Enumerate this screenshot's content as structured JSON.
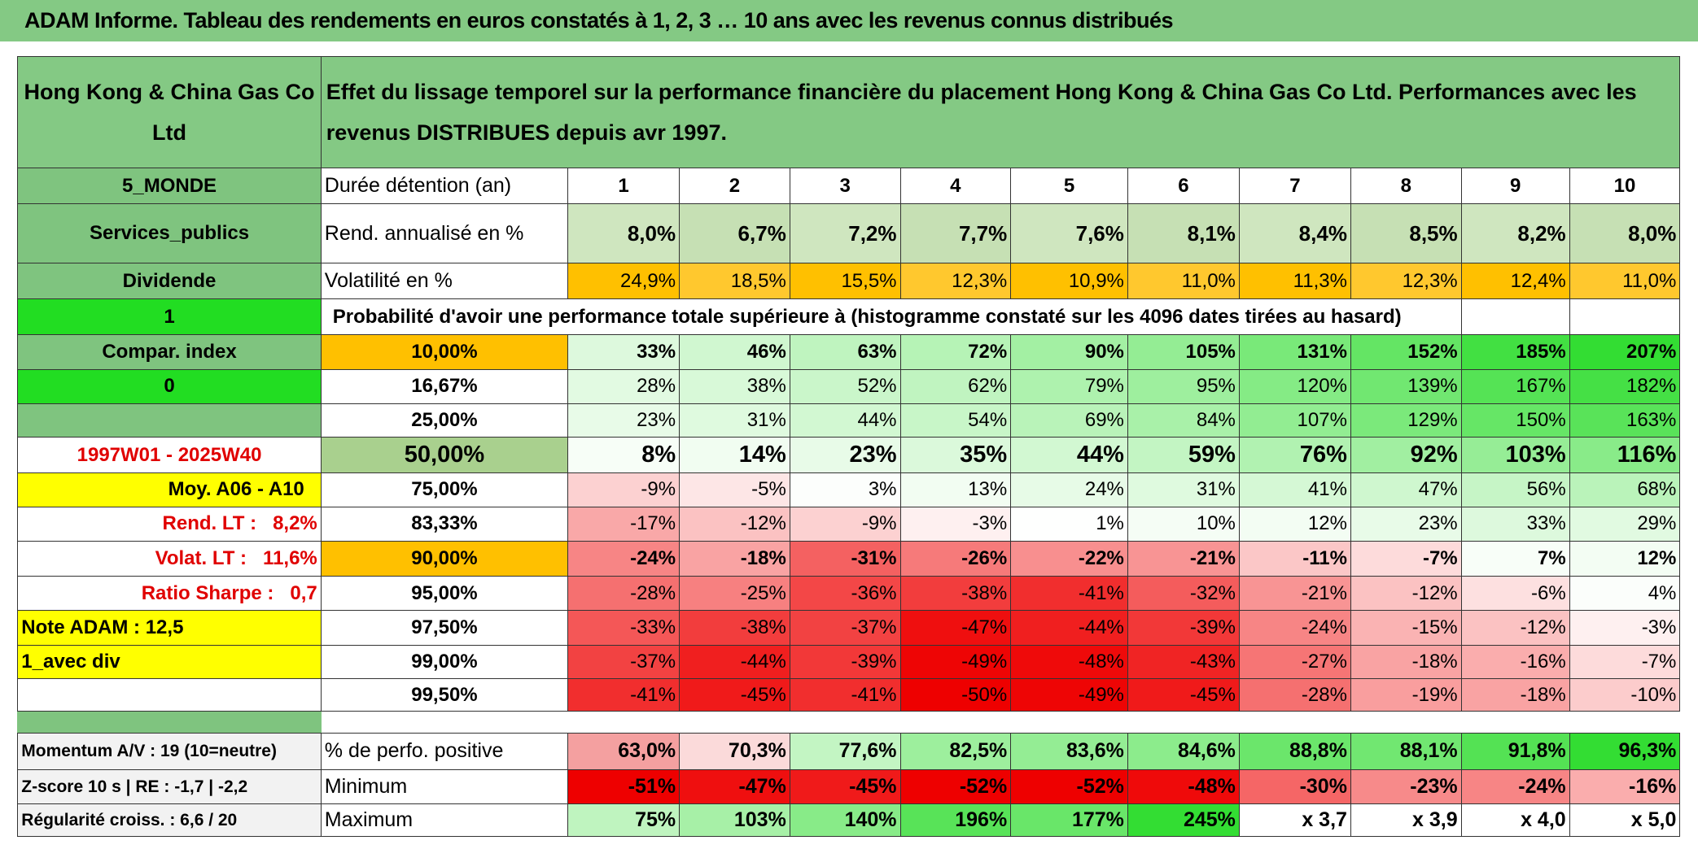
{
  "header": {
    "title": "ADAM Informe. Tableau des rendements en euros constatés à 1, 2, 3 … 10 ans avec les revenus connus distribués"
  },
  "table": {
    "name": "Hong Kong & China Gas Co Ltd",
    "description": "Effet du lissage temporel sur la performance financière du placement Hong Kong & China Gas Co Ltd. Performances avec les revenus DISTRIBUES depuis avr 1997.",
    "rows": [
      {
        "left": "5_MONDE",
        "label": "Durée détention (an)",
        "cells": [
          1,
          2,
          3,
          4,
          5,
          6,
          7,
          8,
          9,
          10
        ]
      },
      {
        "left": "Services_publics",
        "label": "Rend. annualisé en %",
        "cells": [
          "8,0%",
          "6,7%",
          "7,2%",
          "7,7%",
          "7,6%",
          "8,1%",
          "8,4%",
          "8,5%",
          "8,2%",
          "8,0%"
        ]
      },
      {
        "left": "Dividende",
        "label": "Volatilité en %",
        "cells": [
          "24,9%",
          "18,5%",
          "15,5%",
          "12,3%",
          "10,9%",
          "11,0%",
          "11,3%",
          "12,3%",
          "12,4%",
          "11,0%"
        ]
      },
      {
        "left": "1",
        "label": "Probabilité d'avoir une performance totale supérieure à (histogramme constaté sur les 4096 dates tirées au hasard)"
      },
      {
        "left": "Compar. index",
        "label": "10,00%",
        "cells": [
          "33%",
          "46%",
          "63%",
          "72%",
          "90%",
          "105%",
          "131%",
          "152%",
          "185%",
          "207%"
        ]
      },
      {
        "left": "0",
        "label": "16,67%",
        "cells": [
          "28%",
          "38%",
          "52%",
          "62%",
          "79%",
          "95%",
          "120%",
          "139%",
          "167%",
          "182%"
        ]
      },
      {
        "label": "25,00%",
        "cells": [
          "23%",
          "31%",
          "44%",
          "54%",
          "69%",
          "84%",
          "107%",
          "129%",
          "150%",
          "163%"
        ]
      },
      {
        "left": "1997W01 - 2025W40",
        "label": "50,00%",
        "cells": [
          "8%",
          "14%",
          "23%",
          "35%",
          "44%",
          "59%",
          "76%",
          "92%",
          "103%",
          "116%"
        ]
      },
      {
        "left": "Moy. A06 - A10",
        "label": "75,00%",
        "cells": [
          "-9%",
          "-5%",
          "3%",
          "13%",
          "24%",
          "31%",
          "41%",
          "47%",
          "56%",
          "68%"
        ]
      },
      {
        "left": "Rend. LT :   8,2%",
        "label": "83,33%",
        "cells": [
          "-17%",
          "-12%",
          "-9%",
          "-3%",
          "1%",
          "10%",
          "12%",
          "23%",
          "33%",
          "29%"
        ]
      },
      {
        "left": "Volat. LT :   11,6%",
        "label": "90,00%",
        "cells": [
          "-24%",
          "-18%",
          "-31%",
          "-26%",
          "-22%",
          "-21%",
          "-11%",
          "-7%",
          "7%",
          "12%"
        ]
      },
      {
        "left": "Ratio Sharpe :   0,7",
        "label": "95,00%",
        "cells": [
          "-28%",
          "-25%",
          "-36%",
          "-38%",
          "-41%",
          "-32%",
          "-21%",
          "-12%",
          "-6%",
          "4%"
        ]
      },
      {
        "left": "Note ADAM : 12,5",
        "label": "97,50%",
        "cells": [
          "-33%",
          "-38%",
          "-37%",
          "-47%",
          "-44%",
          "-39%",
          "-24%",
          "-15%",
          "-12%",
          "-3%"
        ]
      },
      {
        "left": "1_avec div",
        "label": "99,00%",
        "cells": [
          "-37%",
          "-44%",
          "-39%",
          "-49%",
          "-48%",
          "-43%",
          "-27%",
          "-18%",
          "-16%",
          "-7%"
        ]
      },
      {
        "label": "99,50%",
        "cells": [
          "-41%",
          "-45%",
          "-41%",
          "-50%",
          "-49%",
          "-45%",
          "-28%",
          "-19%",
          "-18%",
          "-10%"
        ]
      },
      {
        "left": "Momentum A/V : 19 (10=neutre)",
        "label": "% de perfo. positive",
        "cells": [
          "63,0%",
          "70,3%",
          "77,6%",
          "82,5%",
          "83,6%",
          "84,6%",
          "88,8%",
          "88,1%",
          "91,8%",
          "96,3%"
        ]
      },
      {
        "left": "Z-score 10 s | RE : -1,7 | -2,2",
        "label": "Minimum",
        "cells": [
          "-51%",
          "-47%",
          "-45%",
          "-52%",
          "-52%",
          "-48%",
          "-30%",
          "-23%",
          "-24%",
          "-16%"
        ]
      },
      {
        "left": "Régularité croiss. : 6,6 / 20",
        "label": "Maximum",
        "cells": [
          "75%",
          "103%",
          "140%",
          "196%",
          "177%",
          "245%",
          "x 3,7",
          "x 3,9",
          "x 4,0",
          "x 5,0"
        ]
      }
    ]
  }
}
